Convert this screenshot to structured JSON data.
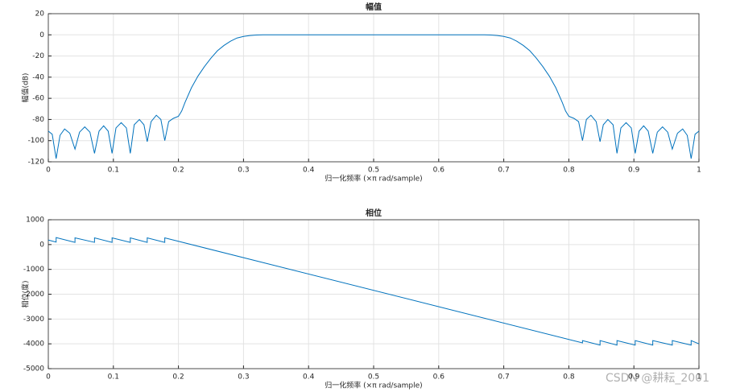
{
  "chart_data": [
    {
      "type": "line",
      "title": "幅值",
      "xlabel": "归一化频率  (×π rad/sample)",
      "ylabel": "幅值(dB)",
      "color": "#0072bd",
      "grid": true,
      "xlim": [
        0,
        1
      ],
      "ylim": [
        -120,
        20
      ],
      "xticks": [
        0,
        0.1,
        0.2,
        0.3,
        0.4,
        0.5,
        0.6,
        0.7,
        0.8,
        0.9,
        1
      ],
      "yticks": [
        20,
        0,
        -20,
        -40,
        -60,
        -80,
        -100,
        -120
      ],
      "x": [
        0,
        0.006,
        0.012,
        0.018,
        0.025,
        0.033,
        0.041,
        0.048,
        0.056,
        0.064,
        0.071,
        0.078,
        0.085,
        0.092,
        0.098,
        0.104,
        0.112,
        0.12,
        0.126,
        0.132,
        0.14,
        0.147,
        0.152,
        0.158,
        0.166,
        0.173,
        0.179,
        0.185,
        0.192,
        0.2,
        0.205,
        0.21,
        0.22,
        0.23,
        0.24,
        0.25,
        0.26,
        0.27,
        0.28,
        0.29,
        0.3,
        0.31,
        0.32,
        0.33,
        0.5,
        0.67,
        0.68,
        0.69,
        0.7,
        0.71,
        0.72,
        0.73,
        0.74,
        0.75,
        0.76,
        0.77,
        0.78,
        0.79,
        0.795,
        0.8,
        0.808,
        0.815,
        0.821,
        0.827,
        0.834,
        0.842,
        0.848,
        0.853,
        0.86,
        0.868,
        0.874,
        0.88,
        0.888,
        0.896,
        0.902,
        0.908,
        0.915,
        0.922,
        0.929,
        0.936,
        0.944,
        0.952,
        0.959,
        0.967,
        0.975,
        0.982,
        0.988,
        0.994,
        1
      ],
      "values": [
        -91,
        -94,
        -117,
        -95,
        -89,
        -93,
        -108,
        -92,
        -87,
        -92,
        -112,
        -91,
        -86,
        -91,
        -112,
        -88,
        -83,
        -88,
        -112,
        -85,
        -80,
        -85,
        -101,
        -82,
        -76,
        -80,
        -100,
        -82,
        -79,
        -77,
        -72,
        -64,
        -50,
        -39,
        -30,
        -22,
        -15,
        -10,
        -6,
        -3,
        -1.5,
        -0.6,
        -0.2,
        0,
        0,
        0,
        -0.2,
        -0.6,
        -1.5,
        -3,
        -6,
        -10,
        -15,
        -22,
        -30,
        -39,
        -50,
        -64,
        -72,
        -77,
        -79,
        -82,
        -100,
        -80,
        -76,
        -82,
        -101,
        -85,
        -80,
        -85,
        -112,
        -88,
        -83,
        -88,
        -112,
        -91,
        -86,
        -91,
        -112,
        -92,
        -87,
        -92,
        -108,
        -93,
        -89,
        -95,
        -117,
        -94,
        -91
      ]
    },
    {
      "type": "line",
      "title": "相位",
      "xlabel": "归一化频率  (×π rad/sample)",
      "ylabel": "相位(度)",
      "color": "#0072bd",
      "grid": true,
      "xlim": [
        0,
        1
      ],
      "ylim": [
        -5000,
        1000
      ],
      "xticks": [
        0,
        0.1,
        0.2,
        0.3,
        0.4,
        0.5,
        0.6,
        0.7,
        0.8,
        0.9,
        1
      ],
      "yticks": [
        1000,
        0,
        -1000,
        -2000,
        -3000,
        -4000,
        -5000
      ],
      "x": [
        0,
        0.012,
        0.012,
        0.041,
        0.041,
        0.071,
        0.071,
        0.098,
        0.098,
        0.126,
        0.126,
        0.152,
        0.152,
        0.179,
        0.179,
        0.821,
        0.821,
        0.848,
        0.848,
        0.874,
        0.874,
        0.902,
        0.902,
        0.929,
        0.929,
        0.959,
        0.959,
        0.988,
        0.988,
        1
      ],
      "values": [
        180,
        100,
        280,
        90,
        270,
        90,
        270,
        90,
        270,
        90,
        270,
        90,
        270,
        90,
        270,
        -3960,
        -3870,
        -4050,
        -3870,
        -4050,
        -3870,
        -4050,
        -3870,
        -4050,
        -3870,
        -4050,
        -3870,
        -4050,
        -3870,
        -4000
      ]
    }
  ],
  "watermark": "CSDN @耕耘_2001"
}
